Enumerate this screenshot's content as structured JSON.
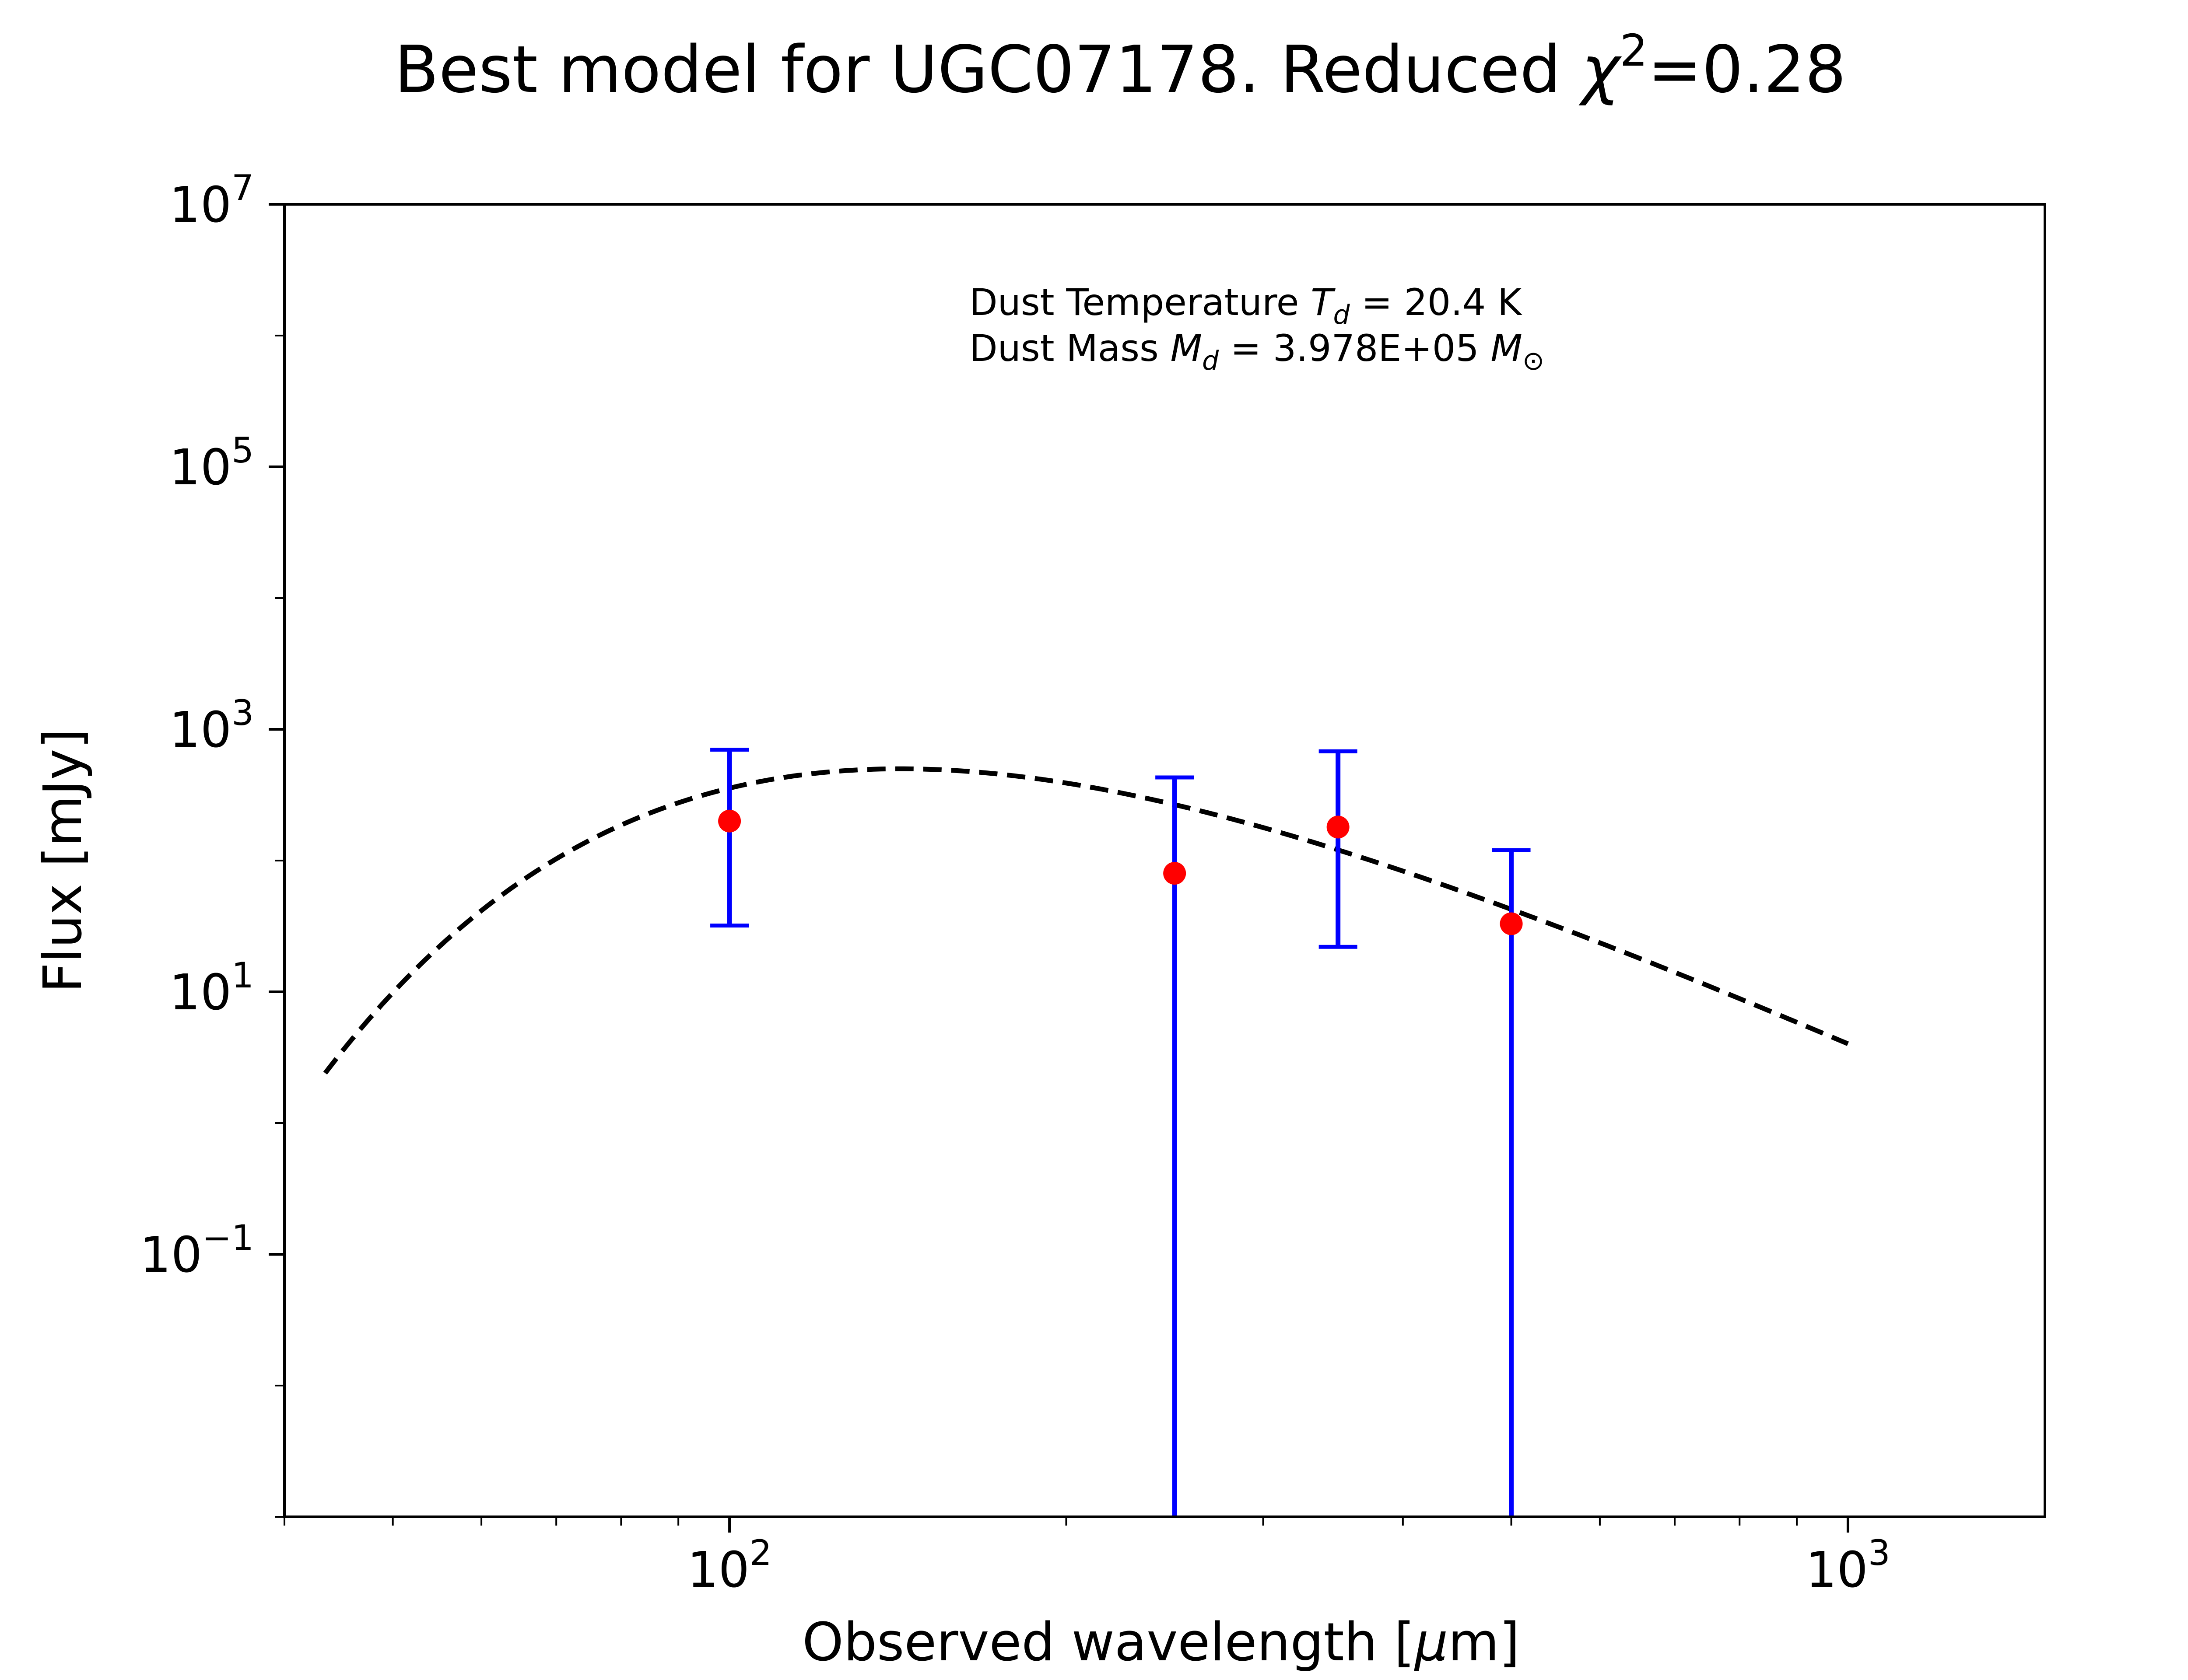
{
  "chart_data": {
    "type": "scatter",
    "title": {
      "main": "Best model for UGC07178. Reduced ",
      "chi": "χ",
      "chi_exp": "2",
      "value": "=0.28"
    },
    "xlabel": {
      "main": "Observed wavelength [",
      "mu": "μ",
      "unit": "m]"
    },
    "ylabel": "Flux [mJy]",
    "x_scale": "log",
    "y_scale": "log",
    "xlim": [
      40,
      1500
    ],
    "ylim": [
      0.001,
      10000000
    ],
    "x_ticks": [
      {
        "value": 100,
        "base": "10",
        "exp": "2"
      },
      {
        "value": 1000,
        "base": "10",
        "exp": "3"
      }
    ],
    "y_ticks": [
      {
        "value": 10000000,
        "base": "10",
        "exp": "7"
      },
      {
        "value": 100000,
        "base": "10",
        "exp": "5"
      },
      {
        "value": 1000,
        "base": "10",
        "exp": "3"
      },
      {
        "value": 10,
        "base": "10",
        "exp": "1"
      },
      {
        "value": 0.1,
        "base": "10",
        "exp": "−1"
      }
    ],
    "annotation": {
      "line1_pre": "Dust Temperature ",
      "line1_sym": "T",
      "line1_sub": "d",
      "line1_post": " = 20.4 K",
      "line2_pre": "Dust Mass ",
      "line2_sym": "M",
      "line2_sub": "d",
      "line2_mid": " = 3.978E+05 ",
      "line2_sym2": "M",
      "line2_sub2": "⊙"
    },
    "observations": {
      "points": [
        {
          "x": 100,
          "y": 200,
          "yerr_low": 32,
          "yerr_high": 700
        },
        {
          "x": 250,
          "y": 80,
          "yerr_low": 0.001,
          "yerr_high": 430
        },
        {
          "x": 350,
          "y": 180,
          "yerr_low": 22,
          "yerr_high": 680
        },
        {
          "x": 500,
          "y": 33,
          "yerr_low": 0.001,
          "yerr_high": 120
        }
      ]
    },
    "model": {
      "temperature_K": 20.4,
      "x_range": [
        43.5,
        1000
      ],
      "peak_flux_mJy": 500
    },
    "colors": {
      "point": "#ff0000",
      "errorbar": "#0000ff",
      "model": "#000000",
      "axes": "#000000"
    }
  }
}
